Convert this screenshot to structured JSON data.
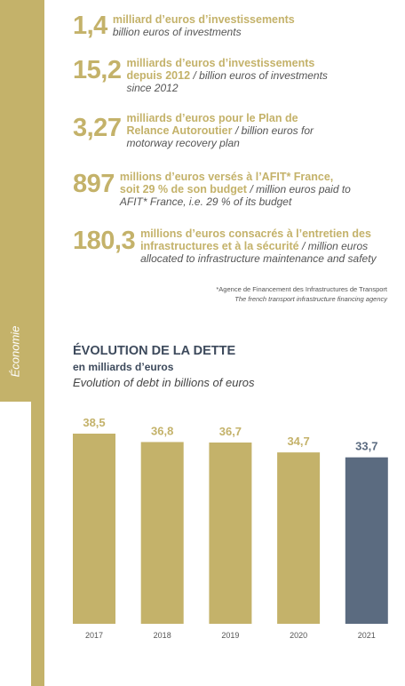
{
  "section": "Économie",
  "stats": [
    {
      "number": "1,4",
      "fr": "milliard d’euros d’investissements",
      "en": "billion euros of investments"
    },
    {
      "number": "15,2",
      "fr": "milliards d’euros d’investissements depuis 2012",
      "en": "/ billion euros of investments since 2012"
    },
    {
      "number": "3,27",
      "fr": "milliards d’euros pour le Plan de Relance Autoroutier",
      "en": "/ billion euros for motorway recovery plan"
    },
    {
      "number": "897",
      "fr": "millions d’euros versés à l’AFIT* France, soit 29 % de son budget",
      "en": "/ million euros paid to AFIT* France, i.e. 29 % of its budget"
    },
    {
      "number": "180,3",
      "fr": "millions d’euros consacrés à l’entretien des infrastructures et à la sécurité",
      "en": "/ million euros allocated to infrastructure maintenance and safety"
    }
  ],
  "footnote": {
    "fr": "*Agence de Financement des Infrastructures de Transport",
    "en": "The french transport infrastructure financing agency"
  },
  "chart_data": {
    "type": "bar",
    "title": "ÉVOLUTION DE LA DETTE",
    "subtitle": "en milliards d’euros",
    "subtitle_en": "Evolution of debt in billions of euros",
    "categories": [
      "2017",
      "2018",
      "2019",
      "2020",
      "2021"
    ],
    "values": [
      38.5,
      36.8,
      36.7,
      34.7,
      33.7
    ],
    "value_labels": [
      "38,5",
      "36,8",
      "36,7",
      "34,7",
      "33,7"
    ],
    "colors": [
      "#c4b26a",
      "#c4b26a",
      "#c4b26a",
      "#c4b26a",
      "#5b6b80"
    ]
  }
}
